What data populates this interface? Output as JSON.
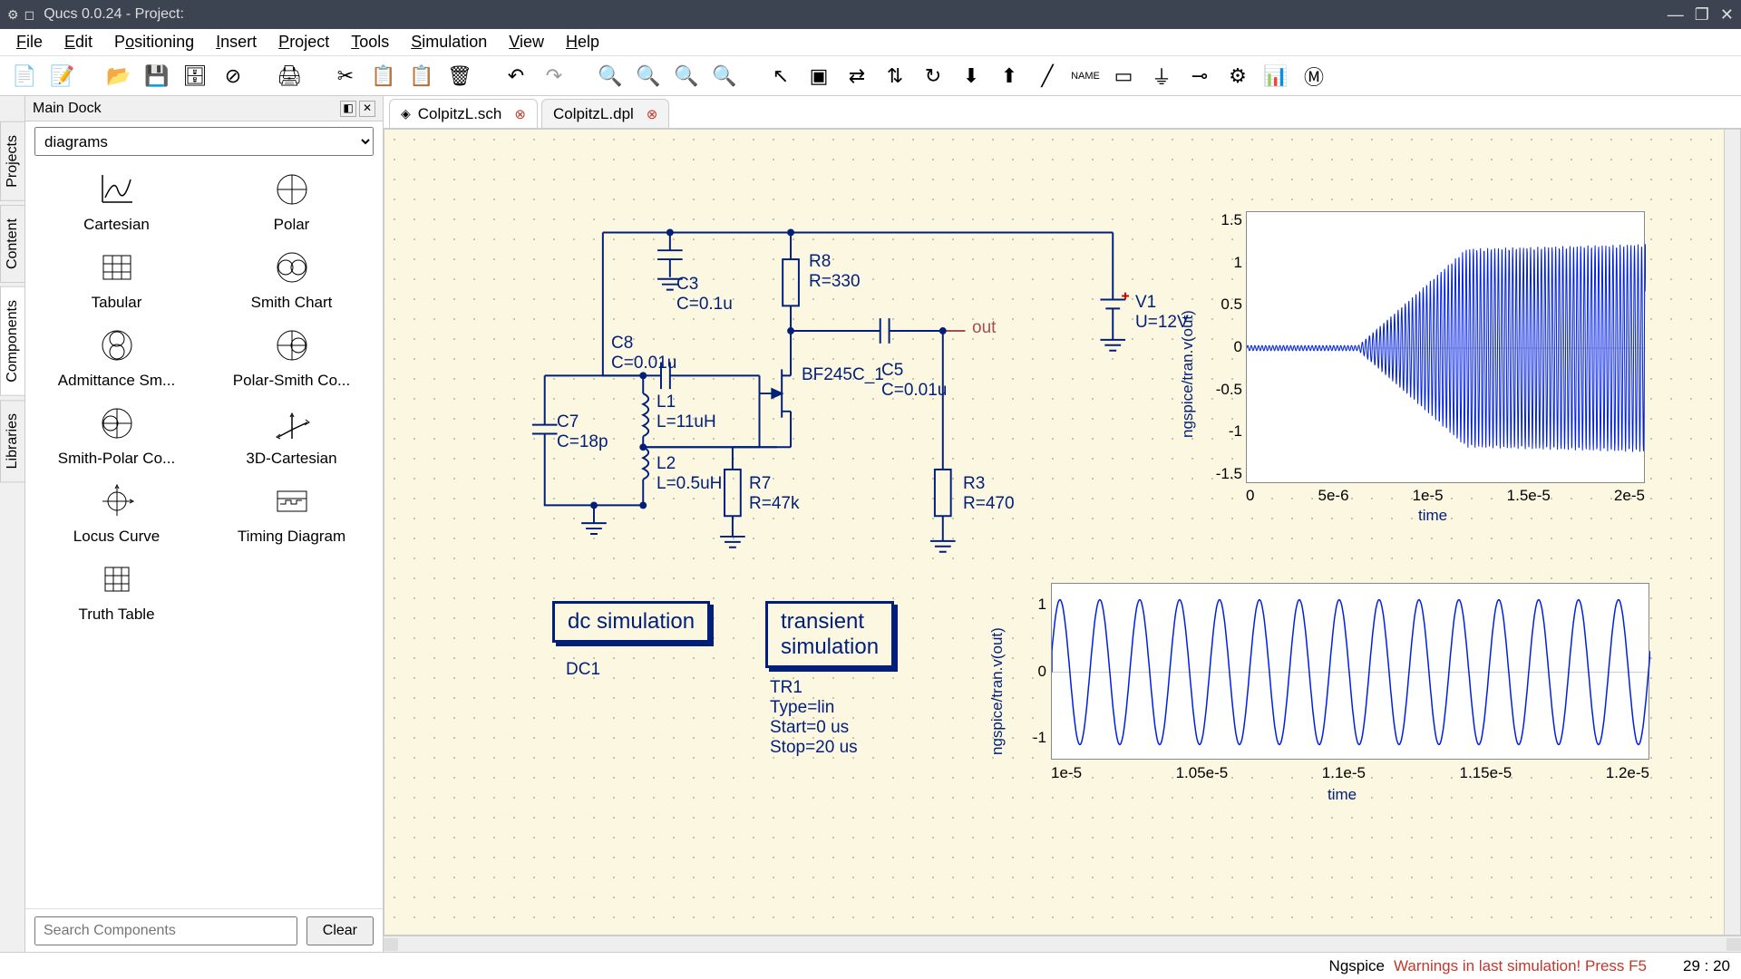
{
  "window": {
    "title": "Qucs 0.0.24 - Project:"
  },
  "menubar": [
    "File",
    "Edit",
    "Positioning",
    "Insert",
    "Project",
    "Tools",
    "Simulation",
    "View",
    "Help"
  ],
  "dock": {
    "title": "Main Dock",
    "combo_value": "diagrams",
    "search_placeholder": "Search Components",
    "clear_label": "Clear",
    "side_tabs": [
      "Projects",
      "Content",
      "Components",
      "Libraries"
    ],
    "items": [
      "Cartesian",
      "Polar",
      "Tabular",
      "Smith Chart",
      "Admittance Sm...",
      "Polar-Smith Co...",
      "Smith-Polar Co...",
      "3D-Cartesian",
      "Locus Curve",
      "Timing Diagram",
      "Truth Table"
    ]
  },
  "tabs": [
    {
      "name": "ColpitzL.sch",
      "active": true
    },
    {
      "name": "ColpitzL.dpl",
      "active": false
    }
  ],
  "schematic": {
    "wire_color": "#001f7a",
    "labels": {
      "C3": "C3",
      "C3v": "C=0.1u",
      "C8": "C8",
      "C8v": "C=0.01u",
      "C7": "C7",
      "C7v": "C=18p",
      "L1": "L1",
      "L1v": "L=11uH",
      "L2": "L2",
      "L2v": "L=0.5uH",
      "R8": "R8",
      "R8v": "R=330",
      "R7": "R7",
      "R7v": "R=47k",
      "BF": "BF245C_1",
      "C5": "C5",
      "C5v": "C=0.01u",
      "R3": "R3",
      "R3v": "R=470",
      "V1": "V1",
      "V1v": "U=12V",
      "out": "out"
    },
    "dc_box": "dc simulation",
    "dc_name": "DC1",
    "tran_box": "transient\nsimulation",
    "tran_name": "TR1",
    "tran_type": "Type=lin",
    "tran_start": "Start=0 us",
    "tran_stop": "Stop=20 us"
  },
  "chart1": {
    "ylabel": "ngspice/tran.v(out)",
    "xlabel": "time",
    "yticks": [
      "1.5",
      "1",
      "0.5",
      "0",
      "-0.5",
      "-1",
      "-1.5"
    ],
    "xticks": [
      "0",
      "5e-6",
      "1e-5",
      "1.5e-5",
      "2e-5"
    ],
    "background": "#ffffff",
    "trace_color": "#0020e0",
    "ylim": [
      -1.5,
      1.5
    ],
    "xlim": [
      0,
      2e-05
    ]
  },
  "chart2": {
    "ylabel": "ngspice/tran.v(out)",
    "xlabel": "time",
    "yticks": [
      "1",
      "0",
      "-1"
    ],
    "xticks": [
      "1e-5",
      "1.05e-5",
      "1.1e-5",
      "1.15e-5",
      "1.2e-5"
    ],
    "background": "#ffffff",
    "trace_color": "#0020e0",
    "ylim": [
      -1.2,
      1.2
    ],
    "xlim": [
      1e-05,
      1.2e-05
    ]
  },
  "statusbar": {
    "engine": "Ngspice",
    "warning": "Warnings in last simulation! Press F5",
    "coords": "29 : 20"
  }
}
